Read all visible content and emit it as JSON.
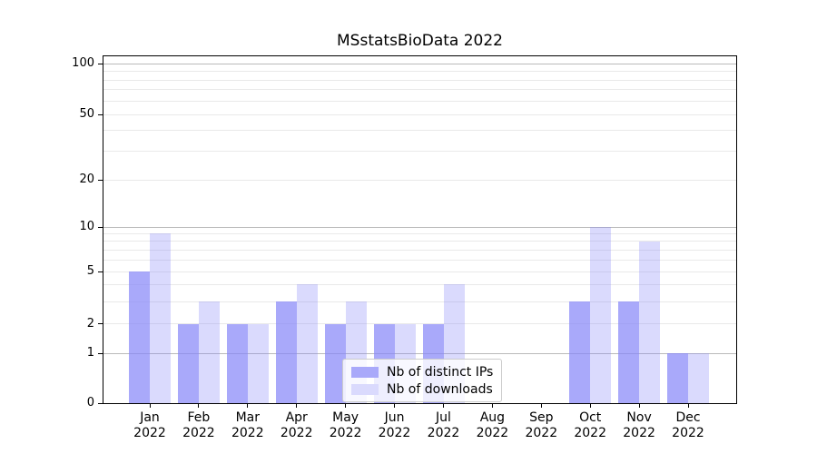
{
  "chart_data": {
    "type": "bar",
    "title": "MSstatsBioData 2022",
    "categories": [
      "Jan",
      "Feb",
      "Mar",
      "Apr",
      "May",
      "Jun",
      "Jul",
      "Aug",
      "Sep",
      "Oct",
      "Nov",
      "Dec"
    ],
    "year_label": "2022",
    "series": [
      {
        "name": "Nb of distinct IPs",
        "color": "rgba(132,132,248,0.7)",
        "legend_color": "#a9a9fa",
        "values": [
          5,
          2,
          2,
          3,
          2,
          2,
          2,
          0,
          0,
          3,
          3,
          1
        ]
      },
      {
        "name": "Nb of downloads",
        "color": "rgba(132,132,248,0.3)",
        "legend_color": "#dadafd",
        "values": [
          9,
          3,
          2,
          4,
          3,
          2,
          4,
          0,
          0,
          10,
          8,
          1
        ]
      }
    ],
    "y_axis": {
      "scale": "quasi-log",
      "range": [
        0,
        100
      ],
      "tick_values": [
        0,
        1,
        2,
        5,
        10,
        20,
        50,
        100
      ],
      "tick_labels": [
        "0",
        "1",
        "2",
        "5",
        "10",
        "20",
        "50",
        "100"
      ],
      "major_gridlines": [
        1,
        10,
        100
      ],
      "minor_gridlines": [
        2,
        3,
        4,
        5,
        6,
        7,
        8,
        9,
        20,
        30,
        40,
        50,
        60,
        70,
        80,
        90
      ]
    },
    "xlabel": "",
    "ylabel": "",
    "grid": true,
    "legend_position": "lower center"
  },
  "colors": {
    "major_grid": "#bbbbbb",
    "minor_grid": "#e9e9e9",
    "axis_frame": "#000000",
    "text": "#000000",
    "legend_border": "#cccccc",
    "background": "#ffffff"
  }
}
